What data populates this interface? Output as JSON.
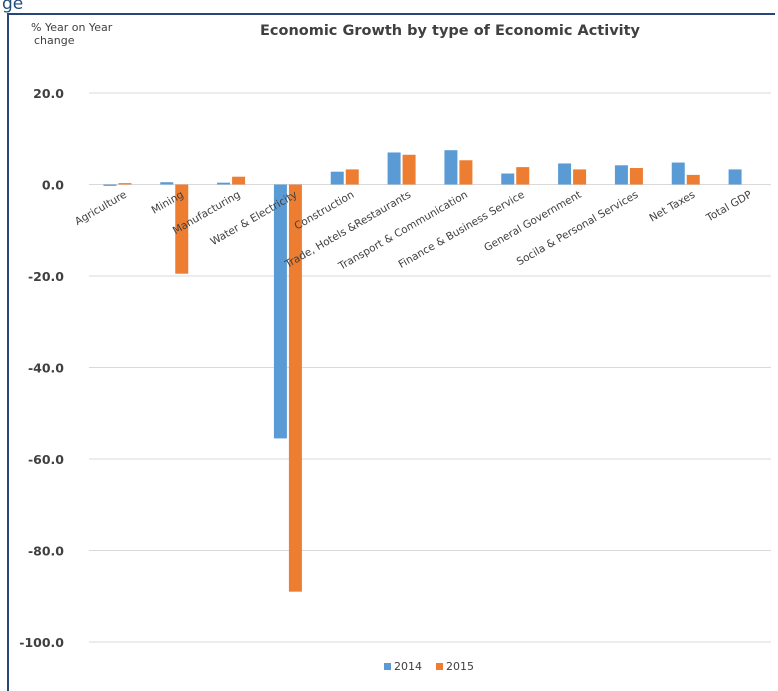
{
  "top_text": "ge",
  "chart_data": {
    "type": "bar",
    "title": "Economic Growth by type of Economic Activity",
    "ylabel": [
      "% Year on Year",
      "change"
    ],
    "ylim": [
      -100,
      20
    ],
    "yticks": [
      20,
      0,
      -20,
      -40,
      -60,
      -80,
      -100
    ],
    "ytick_labels": [
      "20.0",
      "0.0",
      "-20.0",
      "-40.0",
      "-60.0",
      "-80.0",
      "-100.0"
    ],
    "grid": true,
    "legend_position": "bottom",
    "categories": [
      "Agriculture",
      "Mining",
      "Manufacturing",
      "Water & Electricity",
      "Construction",
      "Trade, Hotels &Restaurants",
      "Transport & Communication",
      "Finance & Business Service",
      "General Government",
      "Socila & Personal Services",
      "Net Taxes",
      "Total GDP"
    ],
    "series": [
      {
        "name": "2014",
        "color": "#5b9bd5",
        "values": [
          -0.3,
          0.5,
          0.4,
          -55.5,
          2.8,
          7.0,
          7.5,
          2.4,
          4.6,
          4.2,
          4.8,
          3.3
        ]
      },
      {
        "name": "2015",
        "color": "#ed7d31",
        "values": [
          0.3,
          -19.5,
          1.7,
          -89.0,
          3.3,
          6.5,
          5.3,
          3.8,
          3.3,
          3.6,
          2.1,
          0
        ]
      }
    ]
  }
}
